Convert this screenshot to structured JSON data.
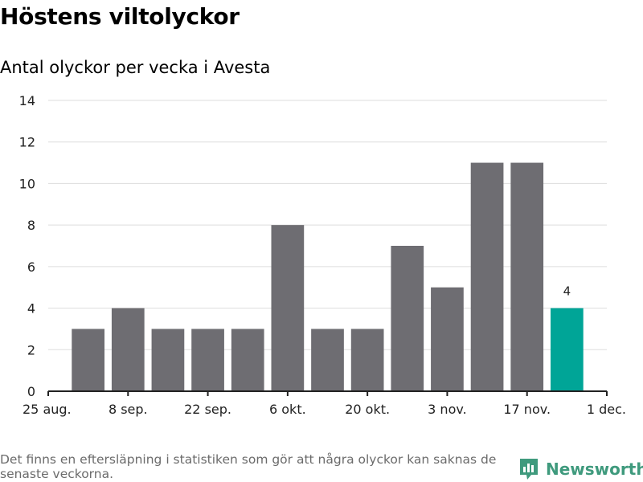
{
  "header": {
    "title": "Höstens viltolyckor",
    "subtitle": "Antal olyckor per vecka i Avesta"
  },
  "footer": {
    "note": "Det finns en eftersläpning i statistiken som gör att några olyckor kan saknas de senaste veckorna.",
    "brand": "Newsworthy",
    "brand_icon": "newsworthy-logo-icon"
  },
  "colors": {
    "bar": "#6e6d72",
    "highlight": "#00a597",
    "grid": "#dddddd",
    "axis": "#222222",
    "brand": "#3f9a7d"
  },
  "chart_data": {
    "type": "bar",
    "title": "Höstens viltolyckor",
    "subtitle": "Antal olyckor per vecka i Avesta",
    "xlabel": "",
    "ylabel": "",
    "ylim": [
      0,
      14
    ],
    "yticks": [
      0,
      2,
      4,
      6,
      8,
      10,
      12,
      14
    ],
    "grid": true,
    "x_ticks": [
      {
        "label": "25 aug.",
        "week": 0
      },
      {
        "label": "8 sep.",
        "week": 2
      },
      {
        "label": "22 sep.",
        "week": 4
      },
      {
        "label": "6 okt.",
        "week": 6
      },
      {
        "label": "20 okt.",
        "week": 8
      },
      {
        "label": "3 nov.",
        "week": 10
      },
      {
        "label": "17 nov.",
        "week": 12
      },
      {
        "label": "1 dec.",
        "week": 14
      }
    ],
    "bars": [
      {
        "week": 1,
        "value": 3
      },
      {
        "week": 2,
        "value": 4
      },
      {
        "week": 3,
        "value": 3
      },
      {
        "week": 4,
        "value": 3
      },
      {
        "week": 5,
        "value": 3
      },
      {
        "week": 6,
        "value": 8
      },
      {
        "week": 7,
        "value": 3
      },
      {
        "week": 8,
        "value": 3
      },
      {
        "week": 9,
        "value": 7
      },
      {
        "week": 10,
        "value": 5
      },
      {
        "week": 11,
        "value": 11
      },
      {
        "week": 12,
        "value": 11
      },
      {
        "week": 13,
        "value": 4,
        "highlight": true,
        "label": "4"
      }
    ]
  }
}
